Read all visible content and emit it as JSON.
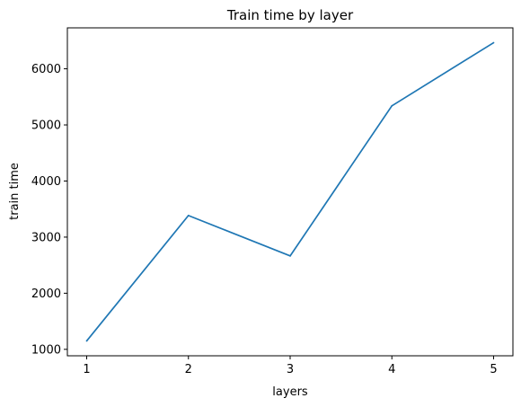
{
  "chart_data": {
    "type": "line",
    "title": "Train time by layer",
    "xlabel": "layers",
    "ylabel": "train time",
    "x": [
      1,
      2,
      3,
      4,
      5
    ],
    "series": [
      {
        "values": [
          1150,
          3385,
          2665,
          5340,
          6465
        ],
        "color": "#1f77b4"
      }
    ],
    "xlim": [
      0.81,
      5.19
    ],
    "ylim": [
      885,
      6730
    ],
    "xticks": [
      1,
      2,
      3,
      4,
      5
    ],
    "xtick_labels": [
      "1",
      "2",
      "3",
      "4",
      "5"
    ],
    "yticks": [
      1000,
      2000,
      3000,
      4000,
      5000,
      6000
    ],
    "ytick_labels": [
      "1000",
      "2000",
      "3000",
      "4000",
      "5000",
      "6000"
    ],
    "grid": false
  }
}
